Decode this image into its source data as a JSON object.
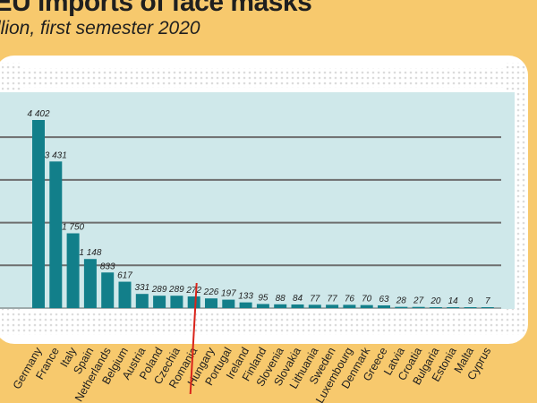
{
  "title": "-EU imports of face masks",
  "subtitle": "llion, first semester 2020",
  "colors": {
    "background": "#f7c96d",
    "mask_fabric": "#ffffff",
    "mask_dots": "#dcdcdc",
    "plot_area": "#cfe8ea",
    "bar": "#127f8a",
    "gridline": "#6e6e6e",
    "pointer_line": "#d9231a",
    "text": "#1f1f1f"
  },
  "chart_data": {
    "type": "bar",
    "title": "-EU imports of face masks",
    "subtitle": "llion, first semester 2020",
    "xlabel": "",
    "ylabel": "",
    "grid": true,
    "ylim": [
      0,
      4500
    ],
    "highlight_category": "Romania",
    "categories": [
      "Germany",
      "France",
      "Italy",
      "Spain",
      "Netherlands",
      "Belgium",
      "Austria",
      "Poland",
      "Czechia",
      "Romania",
      "Hungary",
      "Portugal",
      "Ireland",
      "Finland",
      "Slovenia",
      "Slovakia",
      "Lithuania",
      "Sweden",
      "Luxembourg",
      "Denmark",
      "Greece",
      "Latvia",
      "Croatia",
      "Bulgaria",
      "Estonia",
      "Malta",
      "Cyprus"
    ],
    "values": [
      4402,
      3431,
      1750,
      1148,
      833,
      617,
      331,
      289,
      289,
      272,
      226,
      197,
      133,
      95,
      88,
      84,
      77,
      77,
      76,
      70,
      63,
      28,
      27,
      20,
      14,
      9,
      7
    ],
    "value_labels": [
      "4 402",
      "3 431",
      "1 750",
      "1 148",
      "833",
      "617",
      "331",
      "289",
      "289",
      "272",
      "226",
      "197",
      "133",
      "95",
      "88",
      "84",
      "77",
      "77",
      "76",
      "70",
      "63",
      "28",
      "27",
      "20",
      "14",
      "9",
      "7"
    ]
  }
}
